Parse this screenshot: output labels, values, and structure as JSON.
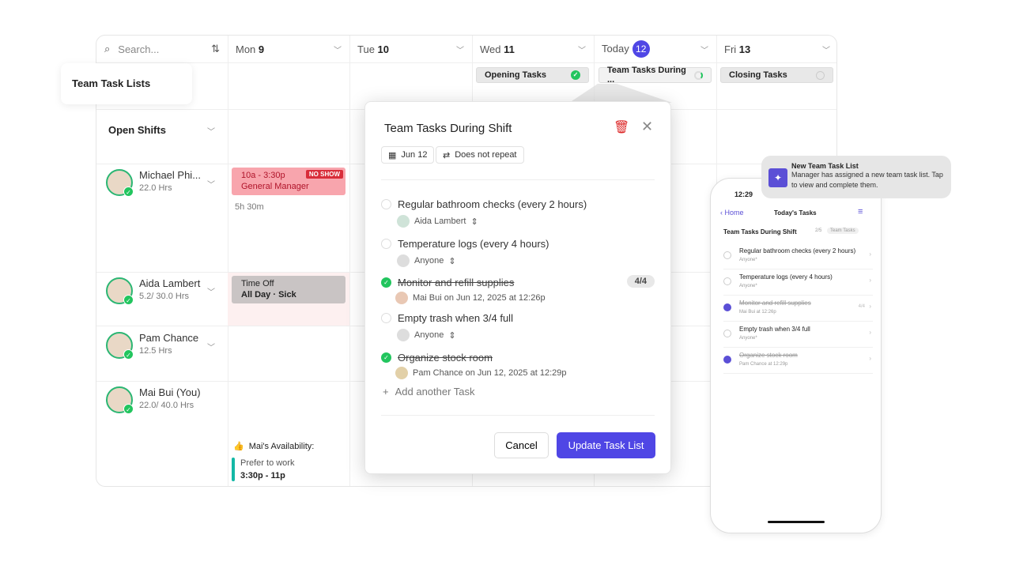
{
  "calendar": {
    "search_placeholder": "Search...",
    "days": [
      {
        "dow": "Mon",
        "num": "9"
      },
      {
        "dow": "Tue",
        "num": "10"
      },
      {
        "dow": "Wed",
        "num": "11"
      },
      {
        "dow": "Today",
        "num": "12"
      },
      {
        "dow": "Fri",
        "num": "13"
      }
    ],
    "task_lists_label": "Team Task Lists",
    "task_lists": [
      {
        "name": "Opening Tasks",
        "status": "complete"
      },
      {
        "name": "Team Tasks During ...",
        "status": "in-progress"
      },
      {
        "name": "Closing Tasks",
        "status": "not-started"
      }
    ],
    "open_shifts": "Open Shifts",
    "employees": [
      {
        "name": "Michael Phi...",
        "hours": "22.0 Hrs"
      },
      {
        "name": "Aida Lambert",
        "hours": "5.2/ 30.0 Hrs"
      },
      {
        "name": "Pam Chance",
        "hours": "12.5 Hrs"
      },
      {
        "name": "Mai Bui (You)",
        "hours": "22.0/ 40.0 Hrs"
      }
    ],
    "shift": {
      "time": "10a - 3:30p",
      "role": "General Manager",
      "badge": "NO SHOW",
      "duration": "5h 30m"
    },
    "timeoff": {
      "title": "Time Off",
      "detail": "All Day · Sick"
    },
    "availability": {
      "title": "Mai's Availability:",
      "pref": "Prefer to work",
      "time": "3:30p - 11p"
    }
  },
  "modal": {
    "title": "Team Tasks During Shift",
    "date": "Jun 12",
    "repeat": "Does not repeat",
    "tasks": [
      {
        "name": "Regular bathroom checks (every 2 hours)",
        "sub": "Aida Lambert",
        "done": false
      },
      {
        "name": "Temperature logs (every 4 hours)",
        "sub": "Anyone",
        "done": false
      },
      {
        "name": "Monitor and refill supplies",
        "sub": "Mai Bui on Jun 12, 2025 at 12:26p",
        "done": true,
        "count": "4/4"
      },
      {
        "name": "Empty trash when 3/4 full",
        "sub": "Anyone",
        "done": false
      },
      {
        "name": "Organize stock room",
        "sub": "Pam Chance on Jun 12, 2025 at 12:29p",
        "done": true
      }
    ],
    "add_task": "Add another Task",
    "cancel": "Cancel",
    "update": "Update Task List"
  },
  "notification": {
    "title": "New Team Task List",
    "body": "Manager has assigned a new team task list. Tap to view and complete them."
  },
  "phone": {
    "time": "12:29",
    "back": "Home",
    "title": "Today's Tasks",
    "list": "Team Tasks During Shift",
    "progress": "2/5",
    "tag": "Team Tasks",
    "tasks": [
      {
        "name": "Regular bathroom checks (every 2 hours)",
        "sub": "Anyone*",
        "done": false
      },
      {
        "name": "Temperature logs (every 4 hours)",
        "sub": "Anyone*",
        "done": false
      },
      {
        "name": "Monitor and refill supplies",
        "sub": "Mai Bui at 12:26p",
        "done": true,
        "count": "4/4"
      },
      {
        "name": "Empty trash when 3/4 full",
        "sub": "Anyone*",
        "done": false
      },
      {
        "name": "Organize stock room",
        "sub": "Pam Chance at 12:29p",
        "done": true
      }
    ]
  },
  "colors": {
    "accent": "#4f46e5",
    "success": "#22c55e",
    "danger": "#dc2626",
    "shift": "#f8a5ad"
  }
}
